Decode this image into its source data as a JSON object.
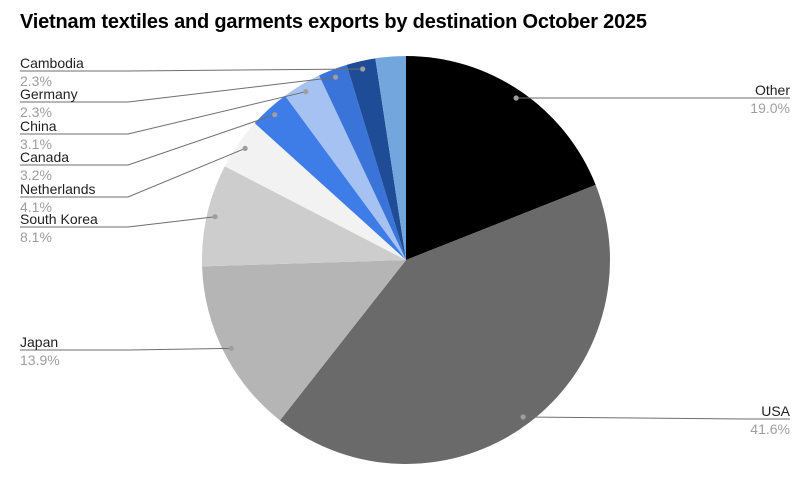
{
  "title": "Vietnam textiles and garments exports by destination October 2025",
  "chart_data": {
    "type": "pie",
    "title": "Vietnam textiles and garments exports by destination October 2025",
    "unit": "percent",
    "legend_position": "labeled-callouts",
    "start_angle_deg": 0,
    "direction": "clockwise",
    "slices": [
      {
        "label": "Other",
        "value": 19.0,
        "pct_text": "19.0%",
        "color": "#000000",
        "callout_side": "right"
      },
      {
        "label": "USA",
        "value": 41.6,
        "pct_text": "41.6%",
        "color": "#6a6a6a",
        "callout_side": "right"
      },
      {
        "label": "Japan",
        "value": 13.9,
        "pct_text": "13.9%",
        "color": "#b5b5b5",
        "callout_side": "left"
      },
      {
        "label": "South Korea",
        "value": 8.1,
        "pct_text": "8.1%",
        "color": "#cdcdcd",
        "callout_side": "left"
      },
      {
        "label": "Netherlands",
        "value": 4.1,
        "pct_text": "4.1%",
        "color": "#f2f2f2",
        "callout_side": "left"
      },
      {
        "label": "Canada",
        "value": 3.2,
        "pct_text": "3.2%",
        "color": "#3e7ce8",
        "callout_side": "left"
      },
      {
        "label": "China",
        "value": 3.1,
        "pct_text": "3.1%",
        "color": "#a5c2f2",
        "callout_side": "left"
      },
      {
        "label": "Germany",
        "value": 2.3,
        "pct_text": "2.3%",
        "color": "#3a74d8",
        "callout_side": "left"
      },
      {
        "label": "Cambodia",
        "value": 2.3,
        "pct_text": "2.3%",
        "color": "#1e4c96",
        "callout_side": "left"
      },
      {
        "label": "",
        "value": 2.4,
        "pct_text": "",
        "color": "#72a6dc",
        "callout_side": "none"
      }
    ]
  },
  "colors": {
    "background": "#ffffff",
    "title_text": "#000000",
    "label_text": "#1f1f1f",
    "pct_text": "#9e9e9e",
    "leader_line": "#6e6e6e",
    "leader_dot": "#9e9e9e"
  }
}
